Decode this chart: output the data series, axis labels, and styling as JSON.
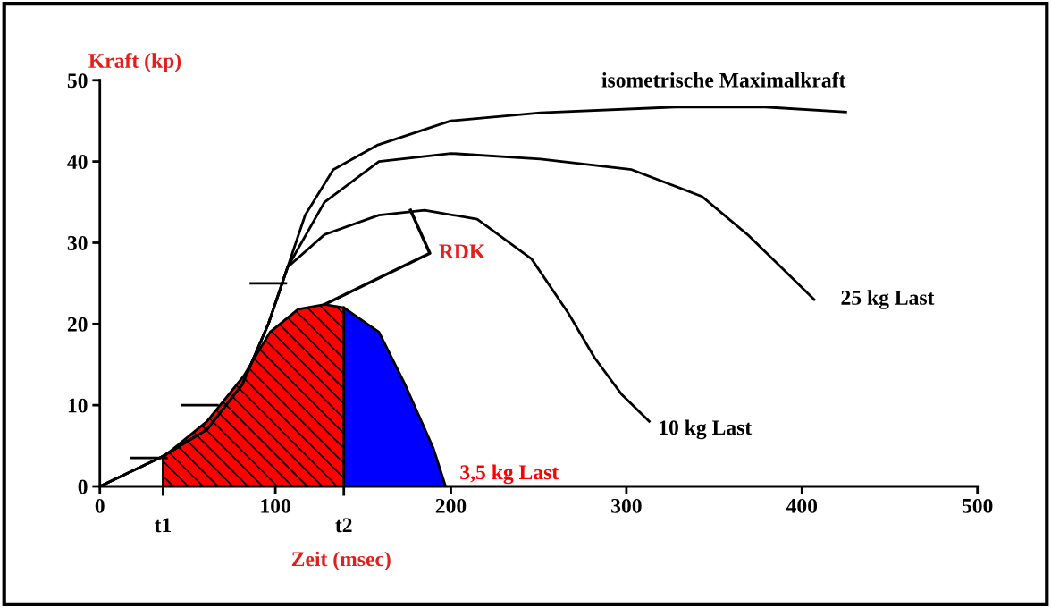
{
  "chart_data": {
    "type": "line",
    "ylabel": "Kraft (kp)",
    "xlabel": "Zeit (msec)",
    "xlim": [
      0,
      500
    ],
    "ylim": [
      0,
      50
    ],
    "xticks": [
      0,
      100,
      200,
      300,
      400,
      500
    ],
    "ref_lines": [
      {
        "axis": "x",
        "value": 36,
        "label": "t1"
      },
      {
        "axis": "x",
        "value": 139,
        "label": "t2"
      }
    ],
    "yticks": [
      0,
      10,
      20,
      30,
      40,
      50
    ],
    "grid": false,
    "legend": false,
    "series": [
      {
        "name": "isometrische Maximalkraft",
        "color": "#000000",
        "x": [
          0,
          35,
          61,
          81,
          96,
          107,
          117,
          133,
          158,
          200,
          251,
          328,
          379,
          425
        ],
        "values": [
          0,
          3.6,
          7,
          12.5,
          20,
          27,
          33.4,
          39,
          42,
          45,
          46,
          46.7,
          46.7,
          46.1
        ]
      },
      {
        "name": "25 kg Last",
        "color": "#000000",
        "x": [
          0,
          35,
          61,
          81,
          96,
          107,
          128,
          159,
          200,
          251,
          303,
          343,
          369,
          389,
          407
        ],
        "values": [
          0,
          3.6,
          7,
          12.5,
          20,
          27,
          35,
          40,
          41,
          40.3,
          39,
          35.7,
          31,
          26.8,
          23
        ]
      },
      {
        "name": "10 kg Last",
        "color": "#000000",
        "x": [
          0,
          35,
          61,
          81,
          96,
          107,
          128,
          159,
          185,
          215,
          246,
          267,
          282,
          297,
          313
        ],
        "values": [
          0,
          3.6,
          7,
          12.5,
          20,
          27,
          31,
          33.4,
          34,
          32.9,
          28,
          21.3,
          15.8,
          11.4,
          8
        ]
      },
      {
        "type": "area",
        "color": "#ff0000",
        "x": [
          36,
          61,
          82,
          97,
          113,
          128,
          139
        ],
        "values": [
          3.6,
          8,
          13.6,
          19,
          21.8,
          22.4,
          22
        ]
      },
      {
        "name": "3,5 kg Last",
        "type": "area",
        "color": "#0000ff",
        "x": [
          139,
          159,
          174,
          190,
          197
        ],
        "values": [
          22,
          19,
          12.5,
          4.7,
          0
        ]
      }
    ],
    "annotations": [
      "RDK"
    ]
  }
}
